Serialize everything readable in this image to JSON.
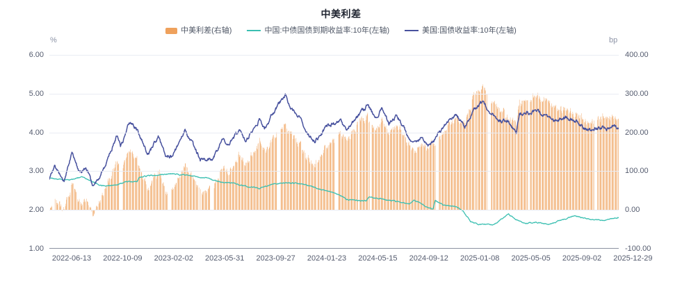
{
  "title": "中美利差",
  "legend": {
    "items": [
      {
        "label": "中美利差(右轴)",
        "swatch": "bar",
        "color": "#EFA15C"
      },
      {
        "label": "中国:中债国债到期收益率:10年(左轴)",
        "swatch": "line",
        "color": "#3ABFB1"
      },
      {
        "label": "美国:国债收益率:10年(左轴)",
        "swatch": "line",
        "color": "#47519E"
      }
    ]
  },
  "axes": {
    "left": {
      "unit": "%",
      "tick_labels": [
        "6.00",
        "5.00",
        "4.00",
        "3.00",
        "2.00",
        "1.00"
      ]
    },
    "right": {
      "unit": "bp",
      "tick_labels": [
        "400.00",
        "300.00",
        "200.00",
        "100.00",
        "0.00",
        "-100.00"
      ]
    },
    "x": {
      "tick_labels": [
        "2022-06-13",
        "2022-10-09",
        "2023-02-02",
        "2023-05-31",
        "2023-09-27",
        "2024-01-23",
        "2024-05-15",
        "2024-09-12",
        "2025-01-08",
        "2025-05-05",
        "2025-09-02",
        "2025-12-29"
      ]
    }
  },
  "chart_data": {
    "type": "combo",
    "title": "中美利差",
    "x_type": "daily-dates",
    "x_range": [
      "2022-04-23",
      "2025-11-26"
    ],
    "x_tick_labels": [
      "2022-06-13",
      "2022-10-09",
      "2023-02-02",
      "2023-05-31",
      "2023-09-27",
      "2024-01-23",
      "2024-05-15",
      "2024-09-12",
      "2025-01-08",
      "2025-05-05",
      "2025-09-02",
      "2025-12-29"
    ],
    "left_axis": {
      "unit": "%",
      "min": 1,
      "max": 6,
      "tick_step": 1
    },
    "right_axis": {
      "unit": "bp",
      "min": -100,
      "max": 400,
      "tick_step": 100
    },
    "grid": "horizontal-only",
    "legend_position": "top-center",
    "series": [
      {
        "name": "中美利差(右轴)",
        "type": "bar",
        "yaxis": "right",
        "unit": "bp",
        "color": "#EFA15C",
        "definition": "(US10Y - CN10Y) * 100; bars omitted on weekends and CN holidays (visible white gaps)"
      },
      {
        "name": "中国:中债国债到期收益率:10年(左轴)",
        "type": "line",
        "yaxis": "left",
        "unit": "%",
        "color": "#3ABFB1",
        "anchors": [
          [
            "2022-04-23",
            2.84
          ],
          [
            "2022-05-27",
            2.76
          ],
          [
            "2022-06-14",
            2.79
          ],
          [
            "2022-07-08",
            2.85
          ],
          [
            "2022-08-01",
            2.74
          ],
          [
            "2022-08-16",
            2.63
          ],
          [
            "2022-09-06",
            2.61
          ],
          [
            "2022-10-24",
            2.73
          ],
          [
            "2022-11-11",
            2.74
          ],
          [
            "2022-11-16",
            2.83
          ],
          [
            "2022-12-13",
            2.89
          ],
          [
            "2023-01-28",
            2.93
          ],
          [
            "2023-03-06",
            2.9
          ],
          [
            "2023-04-20",
            2.83
          ],
          [
            "2023-05-29",
            2.71
          ],
          [
            "2023-06-26",
            2.67
          ],
          [
            "2023-08-21",
            2.56
          ],
          [
            "2023-09-25",
            2.68
          ],
          [
            "2023-10-20",
            2.71
          ],
          [
            "2023-11-27",
            2.68
          ],
          [
            "2023-12-29",
            2.56
          ],
          [
            "2024-01-23",
            2.5
          ],
          [
            "2024-02-29",
            2.34
          ],
          [
            "2024-03-08",
            2.27
          ],
          [
            "2024-04-23",
            2.23
          ],
          [
            "2024-04-29",
            2.35
          ],
          [
            "2024-06-14",
            2.26
          ],
          [
            "2024-07-31",
            2.15
          ],
          [
            "2024-08-12",
            2.25
          ],
          [
            "2024-09-13",
            2.07
          ],
          [
            "2024-09-24",
            2.03
          ],
          [
            "2024-09-29",
            2.25
          ],
          [
            "2024-10-18",
            2.12
          ],
          [
            "2024-11-15",
            2.09
          ],
          [
            "2024-12-02",
            1.98
          ],
          [
            "2024-12-20",
            1.7
          ],
          [
            "2025-01-10",
            1.63
          ],
          [
            "2025-02-10",
            1.61
          ],
          [
            "2025-03-17",
            1.89
          ],
          [
            "2025-04-07",
            1.73
          ],
          [
            "2025-04-25",
            1.66
          ],
          [
            "2025-05-20",
            1.68
          ],
          [
            "2025-06-20",
            1.64
          ],
          [
            "2025-07-18",
            1.74
          ],
          [
            "2025-08-15",
            1.85
          ],
          [
            "2025-09-12",
            1.78
          ],
          [
            "2025-10-17",
            1.73
          ],
          [
            "2025-11-05",
            1.76
          ],
          [
            "2025-11-26",
            1.81
          ]
        ]
      },
      {
        "name": "美国:国债收益率:10年(左轴)",
        "type": "line",
        "yaxis": "left",
        "unit": "%",
        "color": "#47519E",
        "anchors": [
          [
            "2022-04-23",
            2.83
          ],
          [
            "2022-05-06",
            3.12
          ],
          [
            "2022-05-19",
            2.85
          ],
          [
            "2022-05-27",
            2.75
          ],
          [
            "2022-06-14",
            3.47
          ],
          [
            "2022-07-01",
            2.96
          ],
          [
            "2022-07-20",
            3.03
          ],
          [
            "2022-08-02",
            2.58
          ],
          [
            "2022-08-15",
            2.8
          ],
          [
            "2022-09-06",
            3.35
          ],
          [
            "2022-09-27",
            3.96
          ],
          [
            "2022-10-04",
            3.62
          ],
          [
            "2022-10-24",
            4.24
          ],
          [
            "2022-11-09",
            4.1
          ],
          [
            "2022-12-07",
            3.44
          ],
          [
            "2022-12-30",
            3.88
          ],
          [
            "2023-01-18",
            3.38
          ],
          [
            "2023-02-02",
            3.4
          ],
          [
            "2023-03-02",
            4.06
          ],
          [
            "2023-04-06",
            3.3
          ],
          [
            "2023-05-04",
            3.31
          ],
          [
            "2023-05-26",
            3.8
          ],
          [
            "2023-06-12",
            3.74
          ],
          [
            "2023-07-07",
            4.05
          ],
          [
            "2023-07-19",
            3.75
          ],
          [
            "2023-08-21",
            4.33
          ],
          [
            "2023-09-01",
            4.1
          ],
          [
            "2023-09-27",
            4.61
          ],
          [
            "2023-10-19",
            4.98
          ],
          [
            "2023-11-03",
            4.57
          ],
          [
            "2023-11-17",
            4.44
          ],
          [
            "2023-12-14",
            3.93
          ],
          [
            "2023-12-27",
            3.8
          ],
          [
            "2024-01-23",
            4.14
          ],
          [
            "2024-02-22",
            4.32
          ],
          [
            "2024-03-08",
            4.08
          ],
          [
            "2024-04-25",
            4.7
          ],
          [
            "2024-05-15",
            4.36
          ],
          [
            "2024-05-29",
            4.61
          ],
          [
            "2024-06-14",
            4.22
          ],
          [
            "2024-07-01",
            4.46
          ],
          [
            "2024-07-16",
            4.17
          ],
          [
            "2024-08-05",
            3.79
          ],
          [
            "2024-08-26",
            3.83
          ],
          [
            "2024-09-16",
            3.63
          ],
          [
            "2024-10-21",
            4.2
          ],
          [
            "2024-11-15",
            4.45
          ],
          [
            "2024-12-06",
            4.15
          ],
          [
            "2024-12-26",
            4.59
          ],
          [
            "2025-01-14",
            4.79
          ],
          [
            "2025-02-05",
            4.51
          ],
          [
            "2025-02-25",
            4.3
          ],
          [
            "2025-03-14",
            4.3
          ],
          [
            "2025-04-04",
            4.01
          ],
          [
            "2025-04-11",
            4.49
          ],
          [
            "2025-05-21",
            4.54
          ],
          [
            "2025-06-13",
            4.41
          ],
          [
            "2025-07-04",
            4.28
          ],
          [
            "2025-07-25",
            4.4
          ],
          [
            "2025-08-20",
            4.3
          ],
          [
            "2025-09-16",
            4.04
          ],
          [
            "2025-10-10",
            4.12
          ],
          [
            "2025-11-07",
            4.12
          ],
          [
            "2025-11-26",
            4.15
          ]
        ]
      }
    ]
  },
  "colors": {
    "bar": "#EFA15C",
    "cn_line": "#3ABFB1",
    "us_line": "#47519E",
    "grid": "#E9ECF4",
    "axis_line": "#8B90A0",
    "tick_text": "#545B6E",
    "unit_text": "#8C93A6"
  }
}
